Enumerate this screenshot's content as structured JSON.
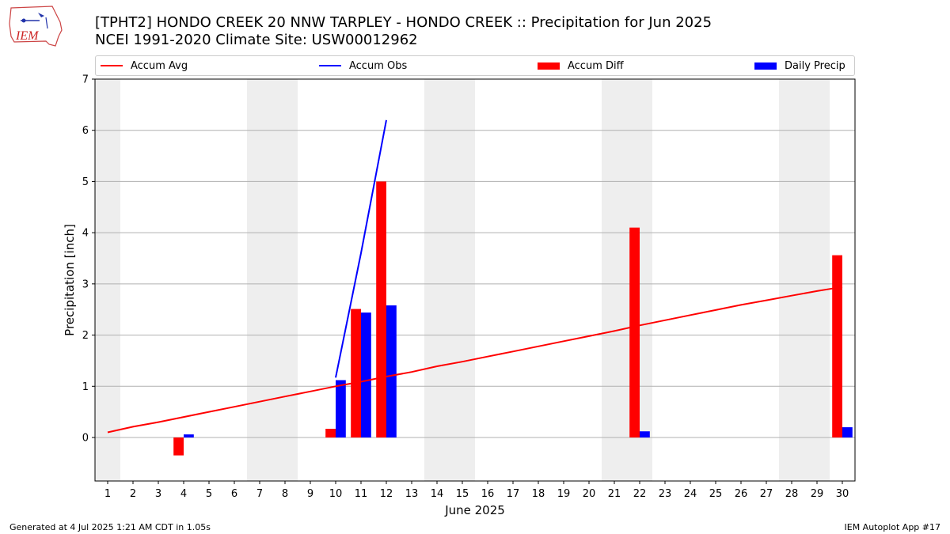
{
  "page": {
    "logo_text": "IEM",
    "title_line1": "[TPHT2] HONDO CREEK 20 NNW TARPLEY - HONDO CREEK :: Precipitation for Jun 2025",
    "title_line2": "NCEI 1991-2020 Climate Site: USW00012962",
    "footer_left": "Generated at 4 Jul 2025 1:21 AM CDT in 1.05s",
    "footer_right": "IEM Autoplot App #17"
  },
  "chart_data": {
    "type": "bar",
    "xlabel": "June 2025",
    "ylabel": "Precipitation [inch]",
    "ylim": [
      -0.85,
      7
    ],
    "yticks": [
      0,
      1,
      2,
      3,
      4,
      5,
      6,
      7
    ],
    "xlim": [
      0.5,
      30.5
    ],
    "days": [
      1,
      2,
      3,
      4,
      5,
      6,
      7,
      8,
      9,
      10,
      11,
      12,
      13,
      14,
      15,
      16,
      17,
      18,
      19,
      20,
      21,
      22,
      23,
      24,
      25,
      26,
      27,
      28,
      29,
      30
    ],
    "weekend_days": [
      1,
      7,
      8,
      14,
      15,
      21,
      22,
      28,
      29
    ],
    "grid": "horizontal",
    "legend_position": "top",
    "colors": {
      "accum_avg": "#ff0000",
      "accum_obs": "#0000ff",
      "accum_diff": "#ff0000",
      "daily_precip": "#0000ff",
      "weekend_shade": "#eeeeee",
      "grid": "#b0b0b0"
    },
    "series": [
      {
        "name": "Accum Avg",
        "kind": "line",
        "x": [
          1,
          2,
          3,
          4,
          5,
          6,
          7,
          8,
          9,
          10,
          11,
          12,
          13,
          14,
          15,
          16,
          17,
          18,
          19,
          20,
          21,
          22,
          23,
          24,
          25,
          26,
          27,
          28,
          29,
          30
        ],
        "values": [
          0.1,
          0.21,
          0.3,
          0.4,
          0.5,
          0.6,
          0.7,
          0.8,
          0.9,
          1.0,
          1.09,
          1.19,
          1.28,
          1.39,
          1.48,
          1.58,
          1.68,
          1.78,
          1.88,
          1.98,
          2.08,
          2.19,
          2.29,
          2.39,
          2.49,
          2.59,
          2.68,
          2.77,
          2.86,
          2.94
        ]
      },
      {
        "name": "Accum Obs",
        "kind": "line",
        "x": [
          10,
          11,
          12
        ],
        "values": [
          1.17,
          3.6,
          6.2
        ]
      },
      {
        "name": "Accum Diff",
        "kind": "bar",
        "x": [
          4,
          10,
          11,
          12,
          22,
          30
        ],
        "values": [
          -0.35,
          0.17,
          2.51,
          5.0,
          4.1,
          3.56
        ]
      },
      {
        "name": "Daily Precip",
        "kind": "bar",
        "x": [
          4,
          10,
          11,
          12,
          22,
          30
        ],
        "values": [
          0.06,
          1.12,
          2.44,
          2.58,
          0.12,
          0.2
        ]
      }
    ]
  }
}
